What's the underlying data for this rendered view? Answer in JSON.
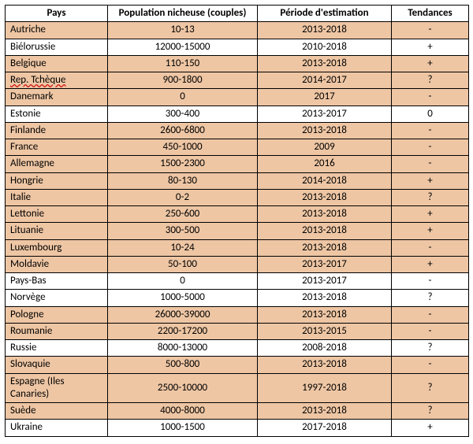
{
  "table": {
    "columns": [
      {
        "key": "pays",
        "label": "Pays"
      },
      {
        "key": "pop",
        "label": "Population nicheuse (couples)"
      },
      {
        "key": "per",
        "label": "Période d'estimation"
      },
      {
        "key": "ten",
        "label": "Tendances"
      }
    ],
    "row_colors": {
      "default": "#eec6a4",
      "alt": "#ffffff"
    },
    "border_color": "#000000",
    "font_family": "Calibri",
    "font_size_pt": 10,
    "rows": [
      {
        "pays": "Autriche",
        "pop": "10-13",
        "per": "2013-2018",
        "ten": "-",
        "bg": "default",
        "spell_error": false
      },
      {
        "pays": "Biélorussie",
        "pop": "12000-15000",
        "per": "2010-2018",
        "ten": "+",
        "bg": "alt",
        "spell_error": false
      },
      {
        "pays": "Belgique",
        "pop": "110-150",
        "per": "2013-2018",
        "ten": "+",
        "bg": "default",
        "spell_error": false
      },
      {
        "pays": "Rep. Tchèque",
        "pop": "900-1800",
        "per": "2014-2017",
        "ten": "?",
        "bg": "default",
        "spell_error": true
      },
      {
        "pays": "Danemark",
        "pop": "0",
        "per": "2017",
        "ten": "-",
        "bg": "default",
        "spell_error": false
      },
      {
        "pays": "Estonie",
        "pop": "300-400",
        "per": "2013-2017",
        "ten": "0",
        "bg": "alt",
        "spell_error": false
      },
      {
        "pays": "Finlande",
        "pop": "2600-6800",
        "per": "2013-2018",
        "ten": "-",
        "bg": "default",
        "spell_error": false
      },
      {
        "pays": "France",
        "pop": "450-1000",
        "per": "2009",
        "ten": "-",
        "bg": "default",
        "spell_error": false
      },
      {
        "pays": "Allemagne",
        "pop": "1500-2300",
        "per": "2016",
        "ten": "-",
        "bg": "default",
        "spell_error": false
      },
      {
        "pays": "Hongrie",
        "pop": "80-130",
        "per": "2014-2018",
        "ten": "+",
        "bg": "default",
        "spell_error": false
      },
      {
        "pays": "Italie",
        "pop": "0-2",
        "per": "2013-2018",
        "ten": "?",
        "bg": "default",
        "spell_error": false
      },
      {
        "pays": "Lettonie",
        "pop": "250-600",
        "per": "2013-2018",
        "ten": "+",
        "bg": "default",
        "spell_error": false
      },
      {
        "pays": "Lituanie",
        "pop": "300-500",
        "per": "2013-2018",
        "ten": "+",
        "bg": "default",
        "spell_error": false
      },
      {
        "pays": "Luxembourg",
        "pop": "10-24",
        "per": "2013-2018",
        "ten": "-",
        "bg": "default",
        "spell_error": false
      },
      {
        "pays": "Moldavie",
        "pop": "50-100",
        "per": "2013-2017",
        "ten": "+",
        "bg": "default",
        "spell_error": false
      },
      {
        "pays": "Pays-Bas",
        "pop": "0",
        "per": "2013-2017",
        "ten": "-",
        "bg": "alt",
        "spell_error": false
      },
      {
        "pays": "Norvège",
        "pop": "1000-5000",
        "per": "2013-2018",
        "ten": "?",
        "bg": "alt",
        "spell_error": false
      },
      {
        "pays": "Pologne",
        "pop": "26000-39000",
        "per": "2013-2018",
        "ten": "-",
        "bg": "default",
        "spell_error": false
      },
      {
        "pays": "Roumanie",
        "pop": "2200-17200",
        "per": "2013-2015",
        "ten": "-",
        "bg": "default",
        "spell_error": false
      },
      {
        "pays": "Russie",
        "pop": "8000-13000",
        "per": "2008-2018",
        "ten": "?",
        "bg": "alt",
        "spell_error": false
      },
      {
        "pays": "Slovaquie",
        "pop": "500-800",
        "per": "2013-2018",
        "ten": "-",
        "bg": "default",
        "spell_error": false
      },
      {
        "pays": "Espagne (Iles Canaries)",
        "pop": "2500-10000",
        "per": "1997-2018",
        "ten": "?",
        "bg": "default",
        "spell_error": false
      },
      {
        "pays": "Suède",
        "pop": "4000-8000",
        "per": "2013-2018",
        "ten": "?",
        "bg": "default",
        "spell_error": false
      },
      {
        "pays": "Ukraine",
        "pop": "1000-1500",
        "per": "2017-2018",
        "ten": "+",
        "bg": "alt",
        "spell_error": false
      }
    ]
  }
}
